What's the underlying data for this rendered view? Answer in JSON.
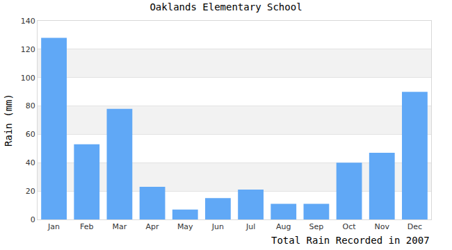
{
  "chart_data": {
    "type": "bar",
    "title": "Oaklands Elementary School",
    "x_label": "Total Rain Recorded in 2007",
    "y_label": "Rain (mm)",
    "categories": [
      "Jan",
      "Feb",
      "Mar",
      "Apr",
      "May",
      "Jun",
      "Jul",
      "Aug",
      "Sep",
      "Oct",
      "Nov",
      "Dec"
    ],
    "values": [
      128,
      53,
      78,
      23,
      7,
      15,
      21,
      11,
      11,
      40,
      47,
      90
    ],
    "color": "#60a8f6",
    "ylim": [
      0,
      140
    ],
    "yticks": [
      0,
      20,
      40,
      60,
      80,
      100,
      120,
      140
    ],
    "grid": true
  }
}
